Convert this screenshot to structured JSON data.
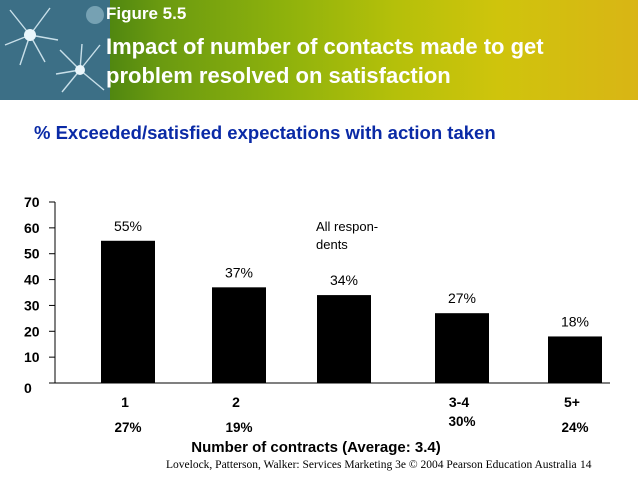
{
  "header": {
    "figure_label": "Figure 5.5",
    "title": "Impact of number of contacts made to get problem resolved on satisfaction"
  },
  "colors": {
    "bar": "#000000",
    "subtitle": "#0a2aa6"
  },
  "chart_data": {
    "type": "bar",
    "title": "% Exceeded/satisfied expectations with action taken",
    "xlabel": "Number of contracts (Average: 3.4)",
    "ylabel": "",
    "ylim": [
      0,
      70
    ],
    "yticks": [
      0,
      10,
      20,
      30,
      40,
      50,
      60,
      70
    ],
    "categories": [
      "1",
      "2",
      "",
      "3-4",
      "5+"
    ],
    "values": [
      55,
      37,
      34,
      27,
      18
    ],
    "value_labels": [
      "55%",
      "37%",
      "34%",
      "27%",
      "18%"
    ],
    "distribution_labels": [
      "27%",
      "19%",
      "",
      "30%",
      "24%"
    ],
    "annotation": "All respon-dents",
    "annotation_lines": [
      "All respon-",
      "dents"
    ]
  },
  "footer": {
    "citation": "Lovelock, Patterson, Walker: Services Marketing 3e © 2004 Pearson Education Australia",
    "page": "14"
  }
}
